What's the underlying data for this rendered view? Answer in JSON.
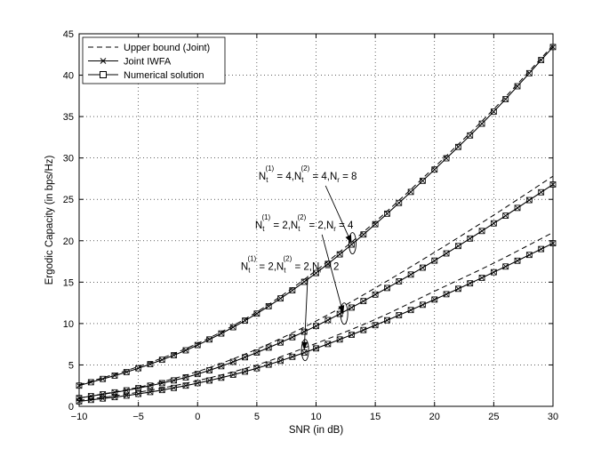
{
  "chart_data": {
    "type": "line",
    "xlabel": "SNR (in dB)",
    "ylabel": "Ergodic Capacity (in bps/Hz)",
    "xlim": [
      -10,
      30
    ],
    "ylim": [
      0,
      45
    ],
    "xticks": [
      -10,
      -5,
      0,
      5,
      10,
      15,
      20,
      25,
      30
    ],
    "yticks": [
      0,
      5,
      10,
      15,
      20,
      25,
      30,
      35,
      40,
      45
    ],
    "grid": true,
    "legend_position": "top-left",
    "legend": [
      {
        "label": "Upper bound (Joint)",
        "style": "dashed"
      },
      {
        "label": "Joint IWFA",
        "style": "solid-x-marker"
      },
      {
        "label": "Numerical solution",
        "style": "solid-square-marker"
      }
    ],
    "snr": [
      -10,
      -5,
      0,
      5,
      10,
      15,
      20,
      25,
      30
    ],
    "series": [
      {
        "group": "N_t^(1)=4, N_t^(2)=4, N_r=8",
        "upper_bound": [
          2.6,
          4.8,
          7.6,
          11.4,
          16.4,
          22.3,
          28.9,
          35.9,
          43.6
        ],
        "joint_iwfa": [
          2.5,
          4.6,
          7.4,
          11.2,
          16.1,
          22.0,
          28.6,
          35.6,
          43.4
        ],
        "numerical": [
          2.5,
          4.6,
          7.4,
          11.2,
          16.1,
          22.0,
          28.6,
          35.6,
          43.4
        ]
      },
      {
        "group": "N_t^(1)=2, N_t^(2)=2, N_r=4",
        "upper_bound": [
          1.0,
          2.3,
          4.2,
          6.9,
          10.3,
          14.3,
          18.6,
          23.1,
          27.8
        ],
        "joint_iwfa": [
          1.0,
          2.2,
          3.9,
          6.5,
          9.7,
          13.5,
          17.6,
          22.1,
          26.8
        ],
        "numerical": [
          1.0,
          2.2,
          3.9,
          6.5,
          9.7,
          13.5,
          17.6,
          22.1,
          26.8
        ]
      },
      {
        "group": "N_t^(1)=2, N_t^(2)=2, N_r=2",
        "upper_bound": [
          0.7,
          1.7,
          3.1,
          5.0,
          7.6,
          10.5,
          13.9,
          17.3,
          21.0
        ],
        "joint_iwfa": [
          0.6,
          1.5,
          2.8,
          4.6,
          7.0,
          9.8,
          12.9,
          16.2,
          19.7
        ],
        "numerical": [
          0.6,
          1.5,
          2.8,
          4.6,
          7.0,
          9.8,
          12.9,
          16.2,
          19.7
        ]
      }
    ],
    "annotations": [
      {
        "nt1": "4",
        "nt2": "4",
        "nr": "8",
        "text_anchor_data": [
          9.3,
          27.4
        ],
        "target_data": [
          13.0,
          19.7
        ]
      },
      {
        "nt1": "2",
        "nt2": "2",
        "nr": "4",
        "text_anchor_data": [
          9.0,
          21.5
        ],
        "target_data": [
          12.3,
          11.2
        ]
      },
      {
        "nt1": "2",
        "nt2": "2",
        "nr": "2",
        "text_anchor_data": [
          7.8,
          16.5
        ],
        "target_data": [
          9.0,
          6.8
        ]
      }
    ]
  }
}
